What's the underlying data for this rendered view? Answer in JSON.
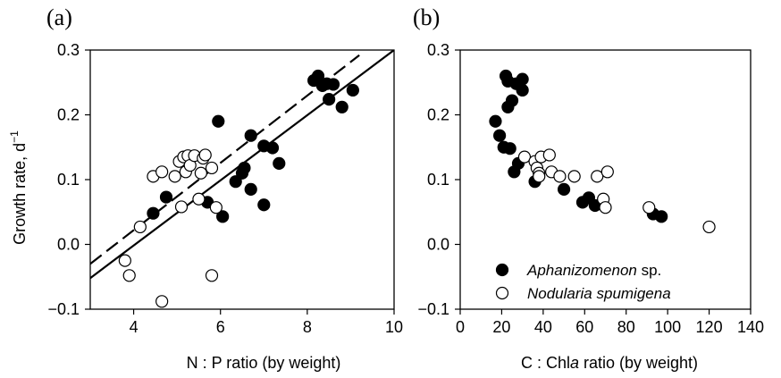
{
  "chart_data": [
    {
      "type": "scatter",
      "panel_label": "(a)",
      "xlabel": "N : P ratio (by weight)",
      "ylabel": "Growth rate, d",
      "ylabel_superscript": "−1",
      "xlim": [
        3,
        10
      ],
      "ylim": [
        -0.1,
        0.3
      ],
      "xticks": [
        4,
        6,
        8,
        10
      ],
      "yticks": [
        -0.1,
        0.0,
        0.1,
        0.2,
        0.3
      ],
      "xtick_labels": [
        "4",
        "6",
        "8",
        "10"
      ],
      "ytick_labels": [
        "−0.1",
        "0.0",
        "0.1",
        "0.2",
        "0.3"
      ],
      "grid": false,
      "series": [
        {
          "name": "Aphanizomenon sp.",
          "marker": "filled-circle",
          "color": "#000000",
          "points": [
            [
              4.45,
              0.048
            ],
            [
              4.75,
              0.073
            ],
            [
              5.7,
              0.065
            ],
            [
              5.95,
              0.19
            ],
            [
              6.05,
              0.043
            ],
            [
              6.35,
              0.097
            ],
            [
              6.5,
              0.11
            ],
            [
              6.55,
              0.118
            ],
            [
              6.7,
              0.168
            ],
            [
              6.7,
              0.085
            ],
            [
              7.0,
              0.061
            ],
            [
              7.0,
              0.152
            ],
            [
              7.2,
              0.149
            ],
            [
              7.35,
              0.125
            ],
            [
              8.15,
              0.253
            ],
            [
              8.25,
              0.26
            ],
            [
              8.35,
              0.245
            ],
            [
              8.45,
              0.248
            ],
            [
              8.5,
              0.224
            ],
            [
              8.6,
              0.247
            ],
            [
              8.8,
              0.212
            ],
            [
              9.05,
              0.238
            ]
          ]
        },
        {
          "name": "Nodularia spumigena",
          "marker": "open-circle",
          "color": "#000000",
          "points": [
            [
              3.8,
              -0.025
            ],
            [
              3.9,
              -0.048
            ],
            [
              4.15,
              0.027
            ],
            [
              4.45,
              0.105
            ],
            [
              4.65,
              0.112
            ],
            [
              4.65,
              -0.088
            ],
            [
              4.95,
              0.105
            ],
            [
              5.05,
              0.128
            ],
            [
              5.1,
              0.058
            ],
            [
              5.15,
              0.135
            ],
            [
              5.2,
              0.112
            ],
            [
              5.25,
              0.137
            ],
            [
              5.3,
              0.122
            ],
            [
              5.4,
              0.137
            ],
            [
              5.5,
              0.07
            ],
            [
              5.55,
              0.11
            ],
            [
              5.6,
              0.133
            ],
            [
              5.65,
              0.138
            ],
            [
              5.8,
              0.118
            ],
            [
              5.8,
              -0.048
            ],
            [
              5.9,
              0.057
            ]
          ]
        }
      ],
      "fit_lines": [
        {
          "series": "Aphanizomenon sp.",
          "style": "solid",
          "x": [
            3,
            10
          ],
          "y": [
            -0.052,
            0.3
          ]
        },
        {
          "series": "Nodularia spumigena",
          "style": "dashed",
          "x": [
            3,
            9.2
          ],
          "y": [
            -0.03,
            0.292
          ]
        }
      ]
    },
    {
      "type": "scatter",
      "panel_label": "(b)",
      "xlabel": "C : Chla ratio (by weight)",
      "xlabel_parts": [
        "C : Chl",
        "a",
        " ratio (by weight)"
      ],
      "ylabel": "",
      "xlim": [
        0,
        140
      ],
      "ylim": [
        -0.1,
        0.3
      ],
      "xticks": [
        0,
        20,
        40,
        60,
        80,
        100,
        120,
        140
      ],
      "yticks": [
        -0.1,
        0.0,
        0.1,
        0.2,
        0.3
      ],
      "xtick_labels": [
        "0",
        "20",
        "40",
        "60",
        "80",
        "100",
        "120",
        "140"
      ],
      "ytick_labels": [
        "−0.1",
        "0.0",
        "0.1",
        "0.2",
        "0.3"
      ],
      "grid": false,
      "legend": {
        "placement": "bottom-left",
        "entries": [
          {
            "label": "Aphanizomenon",
            "label_suffix": " sp.",
            "marker": "filled-circle"
          },
          {
            "label": "Nodularia spumigena",
            "label_suffix": "",
            "marker": "open-circle"
          }
        ]
      },
      "series": [
        {
          "name": "Aphanizomenon sp.",
          "marker": "filled-circle",
          "color": "#000000",
          "points": [
            [
              17,
              0.19
            ],
            [
              19,
              0.168
            ],
            [
              21,
              0.15
            ],
            [
              22,
              0.26
            ],
            [
              23,
              0.252
            ],
            [
              23,
              0.212
            ],
            [
              24,
              0.148
            ],
            [
              25,
              0.222
            ],
            [
              26,
              0.112
            ],
            [
              27,
              0.248
            ],
            [
              28,
              0.125
            ],
            [
              30,
              0.238
            ],
            [
              30,
              0.255
            ],
            [
              36,
              0.097
            ],
            [
              50,
              0.085
            ],
            [
              59,
              0.065
            ],
            [
              62,
              0.072
            ],
            [
              65,
              0.06
            ],
            [
              93,
              0.047
            ],
            [
              97,
              0.043
            ]
          ]
        },
        {
          "name": "Nodularia spumigena",
          "marker": "open-circle",
          "color": "#000000",
          "points": [
            [
              31,
              0.135
            ],
            [
              36,
              0.128
            ],
            [
              37,
              0.118
            ],
            [
              38,
              0.11
            ],
            [
              38,
              0.105
            ],
            [
              39,
              0.135
            ],
            [
              43,
              0.138
            ],
            [
              44,
              0.112
            ],
            [
              48,
              0.105
            ],
            [
              55,
              0.105
            ],
            [
              66,
              0.105
            ],
            [
              69,
              0.07
            ],
            [
              70,
              0.057
            ],
            [
              71,
              0.112
            ],
            [
              91,
              0.057
            ],
            [
              120,
              0.027
            ]
          ]
        }
      ]
    }
  ]
}
